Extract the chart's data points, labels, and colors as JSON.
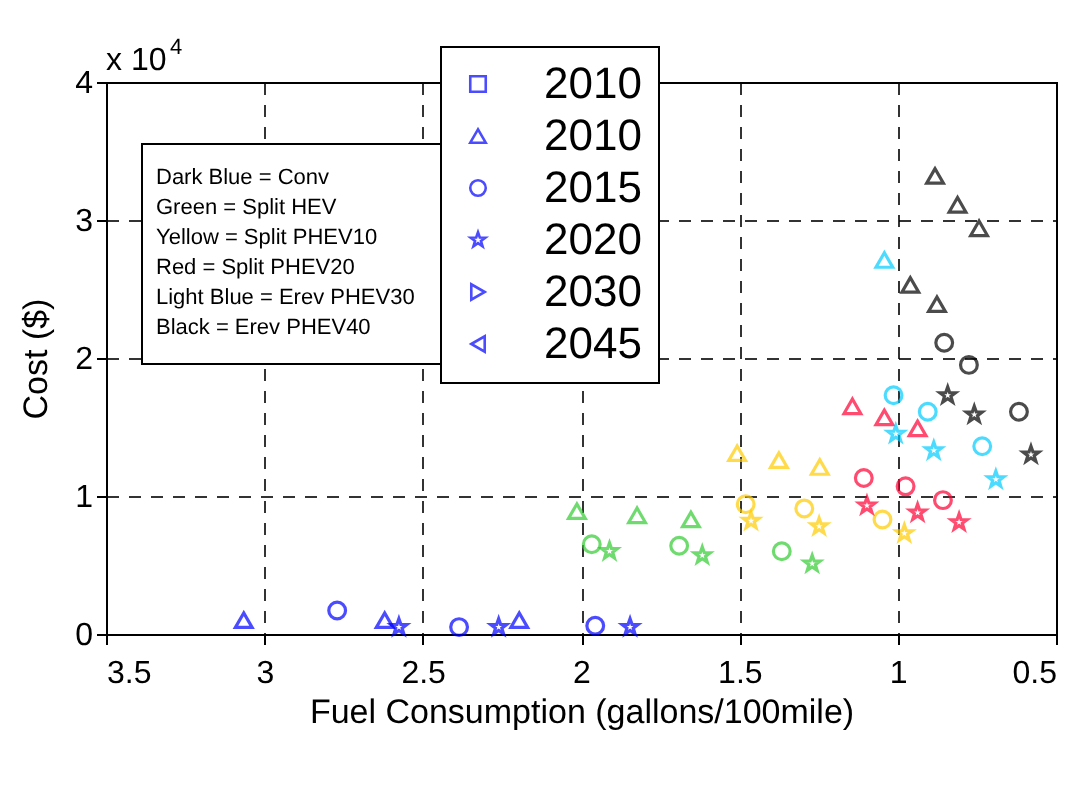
{
  "chart_data": {
    "type": "scatter",
    "xlabel": "Fuel Consumption (gallons/100mile)",
    "ylabel": "Cost ($)",
    "xlim": [
      3.5,
      0.5
    ],
    "xticks": [
      3.5,
      3,
      2.5,
      2,
      1.5,
      1,
      0.5
    ],
    "ylim": [
      0,
      4
    ],
    "yticks": [
      0,
      1,
      2,
      3,
      4
    ],
    "grid": true,
    "legend": "top",
    "annotations": [
      "x 10$^{4}$",
      "Dark Blue = Conv",
      "Green = Split HEV",
      "Yellow = Split PHEV10",
      "Red = Split PHEV20",
      "Light Blue = Erev PHEV30",
      "Black = Erev PHEV40"
    ],
    "series": [
      {
        "name": "2010",
        "color": "#0000ff",
        "marker": "square"
      },
      {
        "name": "2010",
        "color": "#0000ff",
        "marker": "triangle",
        "x": [
          3.065,
          2.62,
          2.195
        ],
        "values": [
          0.1,
          0.1,
          0.1
        ]
      },
      {
        "name": "2015",
        "color": "#0000ff",
        "marker": "circle",
        "x": [
          2.77,
          2.385,
          1.955
        ],
        "values": [
          0.17,
          0.05,
          0.06
        ]
      },
      {
        "name": "2020",
        "color": "#0000ff",
        "marker": "star",
        "x": [
          2.575,
          2.26,
          1.845
        ],
        "values": [
          0.05,
          0.05,
          0.05
        ]
      },
      {
        "name": "2030",
        "color": "#0000ff",
        "marker": "triangle-right"
      },
      {
        "name": "2045",
        "color": "#0000ff",
        "marker": "triangle-left"
      },
      {
        "color": "#33cc33",
        "marker": "triangle",
        "x": [
          2.013,
          1.823,
          1.653
        ],
        "values": [
          0.89,
          0.86,
          0.83
        ]
      },
      {
        "color": "#33cc33",
        "marker": "circle",
        "x": [
          1.966,
          1.69,
          1.366
        ],
        "values": [
          0.65,
          0.64,
          0.6
        ]
      },
      {
        "color": "#33cc33",
        "marker": "star",
        "x": [
          1.91,
          1.617,
          1.27
        ],
        "values": [
          0.6,
          0.57,
          0.51
        ]
      },
      {
        "color": "#ffcc00",
        "marker": "triangle",
        "x": [
          1.507,
          1.375,
          1.246
        ],
        "values": [
          1.31,
          1.26,
          1.21
        ]
      },
      {
        "color": "#ffcc00",
        "marker": "circle",
        "x": [
          1.48,
          1.295,
          1.048
        ],
        "values": [
          0.94,
          0.91,
          0.83
        ]
      },
      {
        "color": "#ffcc00",
        "marker": "star",
        "x": [
          1.463,
          1.248,
          0.979
        ],
        "values": [
          0.82,
          0.78,
          0.73
        ]
      },
      {
        "color": "#ff0033",
        "marker": "triangle",
        "x": [
          1.143,
          1.042,
          0.937
        ],
        "values": [
          1.65,
          1.57,
          1.49
        ]
      },
      {
        "color": "#ff0033",
        "marker": "circle",
        "x": [
          1.107,
          0.975,
          0.857
        ],
        "values": [
          1.13,
          1.07,
          0.97
        ]
      },
      {
        "color": "#ff0033",
        "marker": "star",
        "x": [
          1.097,
          0.937,
          0.806
        ],
        "values": [
          0.93,
          0.88,
          0.81
        ]
      },
      {
        "color": "#00ccff",
        "marker": "triangle",
        "x": [
          1.042
        ],
        "values": [
          2.71
        ]
      },
      {
        "color": "#00ccff",
        "marker": "circle",
        "x": [
          1.013,
          0.905,
          0.733
        ],
        "values": [
          1.73,
          1.61,
          1.36
        ]
      },
      {
        "color": "#00ccff",
        "marker": "star",
        "x": [
          1.006,
          0.886,
          0.69
        ],
        "values": [
          1.45,
          1.33,
          1.12
        ]
      },
      {
        "color": "#000000",
        "marker": "triangle",
        "x": [
          0.882,
          0.811,
          0.743,
          0.96,
          0.876
        ],
        "values": [
          3.32,
          3.11,
          2.94,
          2.53,
          2.39
        ]
      },
      {
        "color": "#000000",
        "marker": "circle",
        "x": [
          0.853,
          0.775,
          0.617
        ],
        "values": [
          2.11,
          1.95,
          1.61
        ]
      },
      {
        "color": "#000000",
        "marker": "star",
        "x": [
          0.842,
          0.758,
          0.579
        ],
        "values": [
          1.73,
          1.59,
          1.3
        ]
      }
    ]
  }
}
